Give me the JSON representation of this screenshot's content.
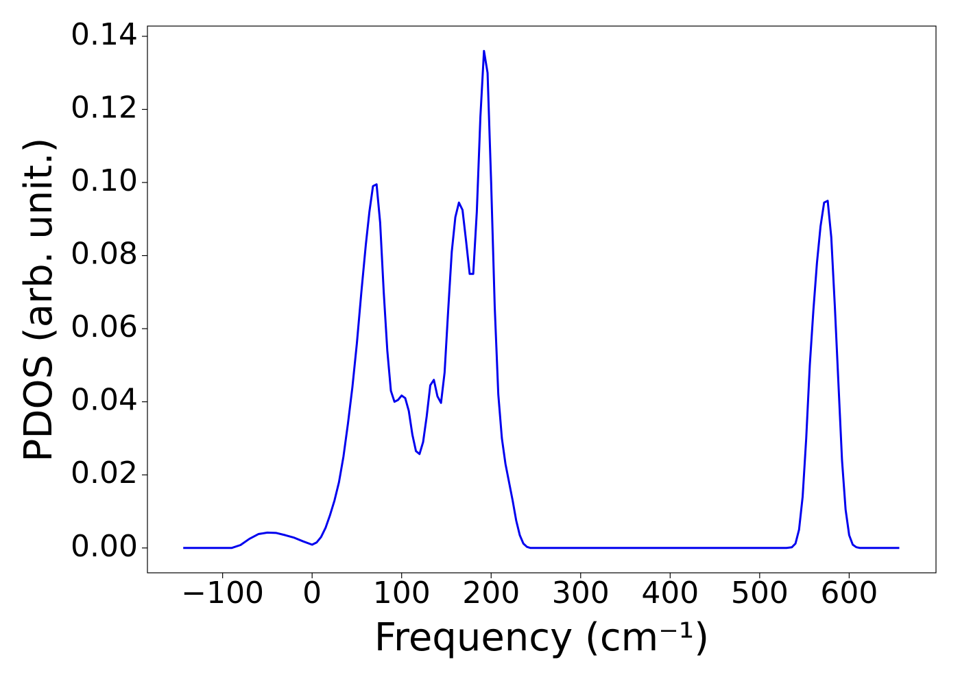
{
  "chart_data": {
    "type": "line",
    "xlabel": "Frequency (cm⁻¹)",
    "ylabel": "PDOS (arb. unit.)",
    "color": "#0000ee",
    "x": [
      -144,
      -90,
      -80,
      -70,
      -60,
      -50,
      -40,
      -30,
      -20,
      -10,
      0,
      5,
      10,
      15,
      20,
      25,
      30,
      35,
      40,
      45,
      50,
      55,
      60,
      64,
      68,
      72,
      76,
      80,
      84,
      88,
      92,
      96,
      100,
      104,
      108,
      112,
      116,
      120,
      124,
      128,
      132,
      136,
      140,
      144,
      148,
      152,
      156,
      160,
      164,
      168,
      172,
      176,
      180,
      184,
      188,
      192,
      196,
      200,
      204,
      208,
      212,
      216,
      220,
      224,
      228,
      232,
      236,
      240,
      244,
      530,
      536,
      540,
      544,
      548,
      552,
      556,
      560,
      564,
      568,
      572,
      576,
      580,
      584,
      588,
      592,
      596,
      600,
      604,
      608,
      612,
      656
    ],
    "values": [
      0,
      0,
      0.0008,
      0.0025,
      0.0038,
      0.0042,
      0.0041,
      0.0035,
      0.0028,
      0.0018,
      0.0009,
      0.0015,
      0.003,
      0.0055,
      0.009,
      0.013,
      0.018,
      0.025,
      0.034,
      0.044,
      0.056,
      0.07,
      0.083,
      0.092,
      0.099,
      0.0995,
      0.089,
      0.07,
      0.054,
      0.043,
      0.04,
      0.0405,
      0.0417,
      0.041,
      0.0375,
      0.031,
      0.0265,
      0.0257,
      0.029,
      0.036,
      0.0445,
      0.046,
      0.0415,
      0.0397,
      0.048,
      0.065,
      0.081,
      0.0905,
      0.0945,
      0.0925,
      0.084,
      0.075,
      0.075,
      0.092,
      0.118,
      0.136,
      0.13,
      0.1,
      0.066,
      0.042,
      0.03,
      0.023,
      0.018,
      0.013,
      0.0075,
      0.0035,
      0.0012,
      0.0003,
      0,
      0,
      0.0002,
      0.0012,
      0.005,
      0.014,
      0.03,
      0.05,
      0.065,
      0.078,
      0.088,
      0.0945,
      0.095,
      0.085,
      0.066,
      0.045,
      0.024,
      0.0105,
      0.0035,
      0.0009,
      0.0002,
      0,
      0
    ],
    "xlim": [
      -184,
      697
    ],
    "ylim": [
      -0.0068,
      0.1428
    ],
    "xticks": [
      {
        "value": -100,
        "label": "−100"
      },
      0,
      100,
      200,
      300,
      400,
      500,
      600
    ],
    "yticks": [
      {
        "value": 0,
        "label": "0.00"
      },
      {
        "value": 0.02,
        "label": "0.02"
      },
      {
        "value": 0.04,
        "label": "0.04"
      },
      {
        "value": 0.06,
        "label": "0.06"
      },
      {
        "value": 0.08,
        "label": "0.08"
      },
      {
        "value": 0.1,
        "label": "0.10"
      },
      {
        "value": 0.12,
        "label": "0.12"
      },
      {
        "value": 0.14,
        "label": "0.14"
      }
    ],
    "grid": false
  }
}
